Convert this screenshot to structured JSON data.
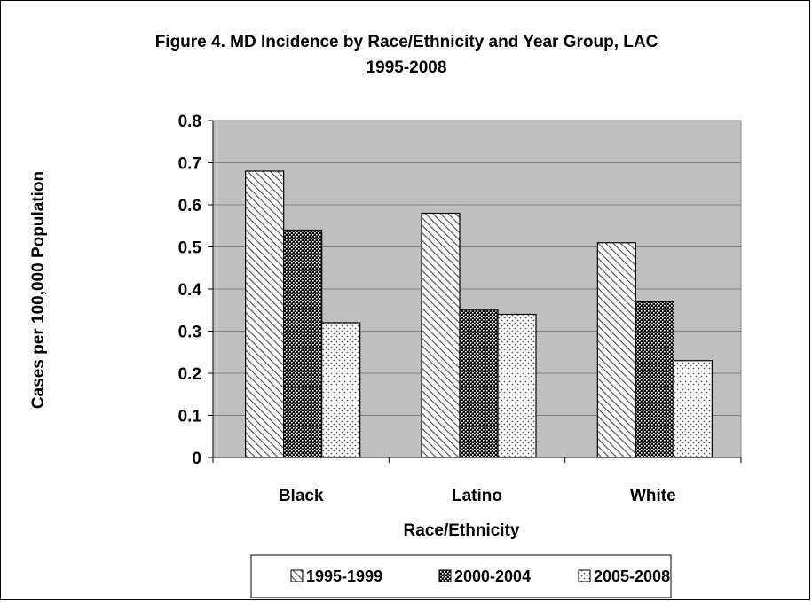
{
  "chart_data": {
    "type": "bar",
    "title": "Figure 4. MD Incidence by Race/Ethnicity and Year Group, LAC",
    "subtitle": "1995-2008",
    "xlabel": "Race/Ethnicity",
    "ylabel": "Cases per 100,000 Population",
    "categories": [
      "Black",
      "Latino",
      "White"
    ],
    "series": [
      {
        "name": "1995-1999",
        "values": [
          0.68,
          0.58,
          0.51
        ],
        "pattern": "diagonal-hatch"
      },
      {
        "name": "2000-2004",
        "values": [
          0.54,
          0.35,
          0.37
        ],
        "pattern": "dark-checker"
      },
      {
        "name": "2005-2008",
        "values": [
          0.32,
          0.34,
          0.23
        ],
        "pattern": "light-dots"
      }
    ],
    "ylim": [
      0,
      0.8
    ],
    "yticks": [
      "0",
      "0.1",
      "0.2",
      "0.3",
      "0.4",
      "0.5",
      "0.6",
      "0.7",
      "0.8"
    ],
    "grid": true,
    "legend_position": "bottom",
    "colors": {
      "plot_background": "#c0c0c0",
      "gridline": "#808080",
      "bar_outline": "#000000"
    }
  }
}
